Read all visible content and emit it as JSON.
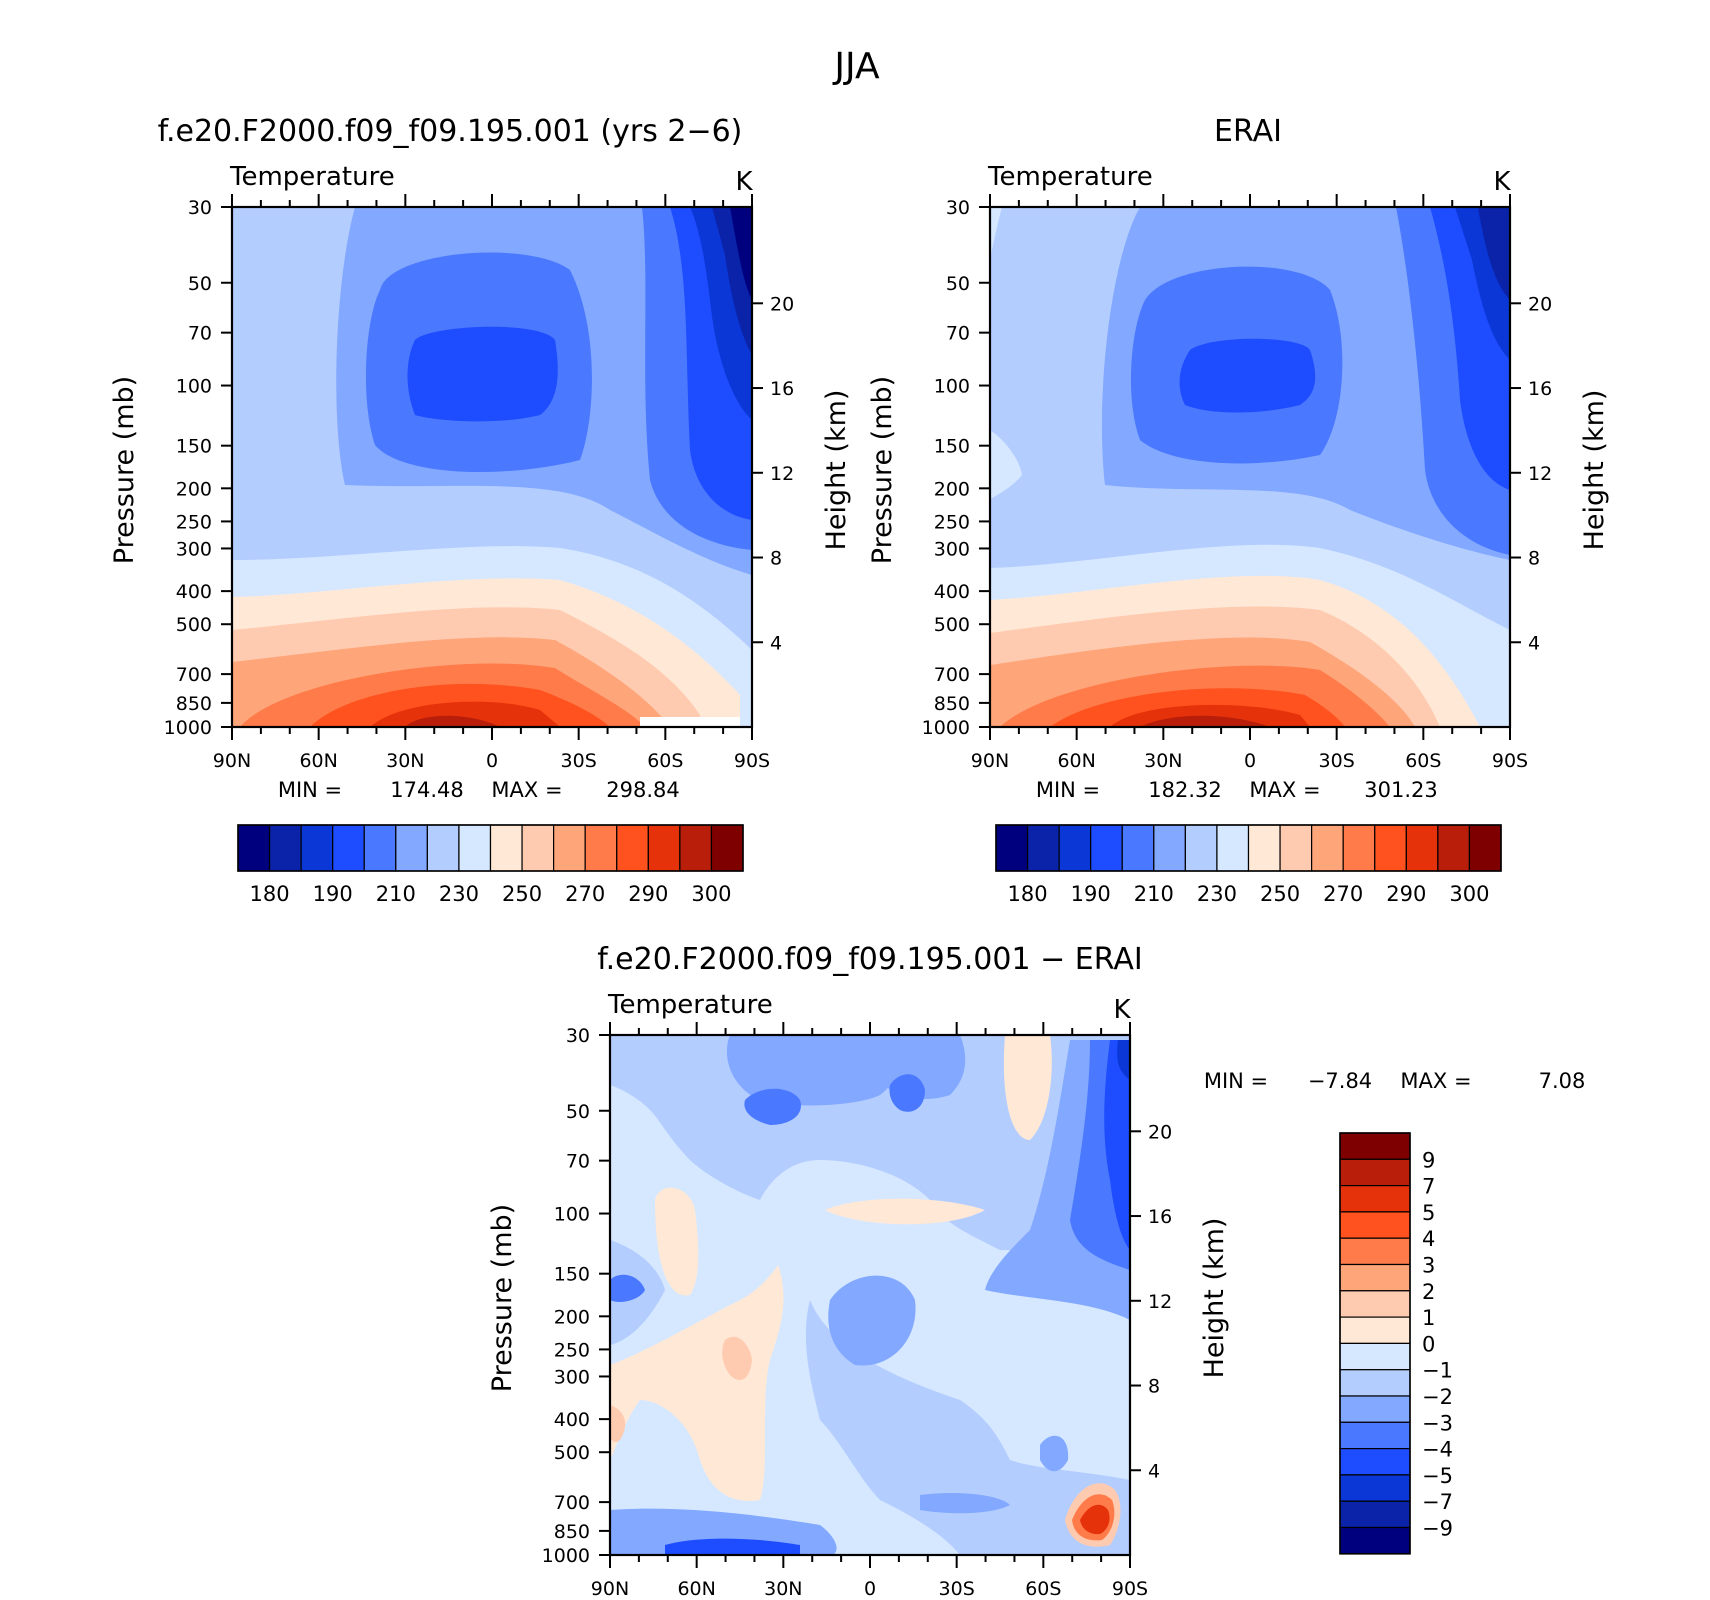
{
  "figure": {
    "title": "JJA",
    "colors": {
      "abs_levels": [
        "#00007f",
        "#0a23a8",
        "#0a37d6",
        "#1e4cff",
        "#4a78ff",
        "#82a8ff",
        "#b4cdff",
        "#d6e8ff",
        "#ffe8d6",
        "#ffcbb0",
        "#ffa57a",
        "#ff7c4a",
        "#ff521e",
        "#e6320a",
        "#b81e0a",
        "#7f0000"
      ],
      "diff_levels": [
        "#00007f",
        "#0a23a8",
        "#0a37d6",
        "#1e4cff",
        "#4a78ff",
        "#82a8ff",
        "#b4cdff",
        "#d6e8ff",
        "#ffe8d6",
        "#ffcbb0",
        "#ffa57a",
        "#ff7c4a",
        "#ff521e",
        "#e6320a",
        "#b81e0a",
        "#7f0000"
      ]
    }
  },
  "chart_data": [
    {
      "type": "heatmap",
      "panel": "model",
      "title": "f.e20.F2000.f09_f09.195.001 (yrs 2−6)",
      "variable": "Temperature",
      "units": "K",
      "xlabel": "",
      "ylabel": "Pressure (mb)",
      "y2label": "Height (km)",
      "x_ticks": [
        "90N",
        "60N",
        "30N",
        "0",
        "30S",
        "60S",
        "90S"
      ],
      "x_range": [
        90,
        -90
      ],
      "y_ticks": [
        30,
        50,
        70,
        100,
        150,
        200,
        250,
        300,
        400,
        500,
        700,
        850,
        1000
      ],
      "y_range": [
        30,
        1000
      ],
      "y2_ticks": [
        4,
        8,
        12,
        16,
        20
      ],
      "min": "174.48",
      "max": "298.84",
      "min_label": "MIN =",
      "max_label": "MAX =",
      "colorbar_levels": [
        "180",
        "190",
        "210",
        "230",
        "250",
        "270",
        "290",
        "300"
      ],
      "colorbar_bins": 16
    },
    {
      "type": "heatmap",
      "panel": "obs",
      "title": "ERAI",
      "variable": "Temperature",
      "units": "K",
      "xlabel": "",
      "ylabel": "Pressure (mb)",
      "y2label": "Height (km)",
      "x_ticks": [
        "90N",
        "60N",
        "30N",
        "0",
        "30S",
        "60S",
        "90S"
      ],
      "x_range": [
        90,
        -90
      ],
      "y_ticks": [
        30,
        50,
        70,
        100,
        150,
        200,
        250,
        300,
        400,
        500,
        700,
        850,
        1000
      ],
      "y_range": [
        30,
        1000
      ],
      "y2_ticks": [
        4,
        8,
        12,
        16,
        20
      ],
      "min": "182.32",
      "max": "301.23",
      "min_label": "MIN =",
      "max_label": "MAX =",
      "colorbar_levels": [
        "180",
        "190",
        "210",
        "230",
        "250",
        "270",
        "290",
        "300"
      ],
      "colorbar_bins": 16
    },
    {
      "type": "heatmap",
      "panel": "difference",
      "title": "f.e20.F2000.f09_f09.195.001 − ERAI",
      "variable": "Temperature",
      "units": "K",
      "xlabel": "",
      "ylabel": "Pressure (mb)",
      "y2label": "Height (km)",
      "x_ticks": [
        "90N",
        "60N",
        "30N",
        "0",
        "30S",
        "60S",
        "90S"
      ],
      "x_range": [
        90,
        -90
      ],
      "y_ticks": [
        30,
        50,
        70,
        100,
        150,
        200,
        250,
        300,
        400,
        500,
        700,
        850,
        1000
      ],
      "y_range": [
        30,
        1000
      ],
      "y2_ticks": [
        4,
        8,
        12,
        16,
        20
      ],
      "min": "−7.84",
      "max": "7.08",
      "min_label": "MIN =",
      "max_label": "MAX =",
      "colorbar_levels": [
        "9",
        "7",
        "5",
        "4",
        "3",
        "2",
        "1",
        "0",
        "−1",
        "−2",
        "−3",
        "−4",
        "−5",
        "−7",
        "−9"
      ],
      "colorbar_bins": 16
    }
  ]
}
